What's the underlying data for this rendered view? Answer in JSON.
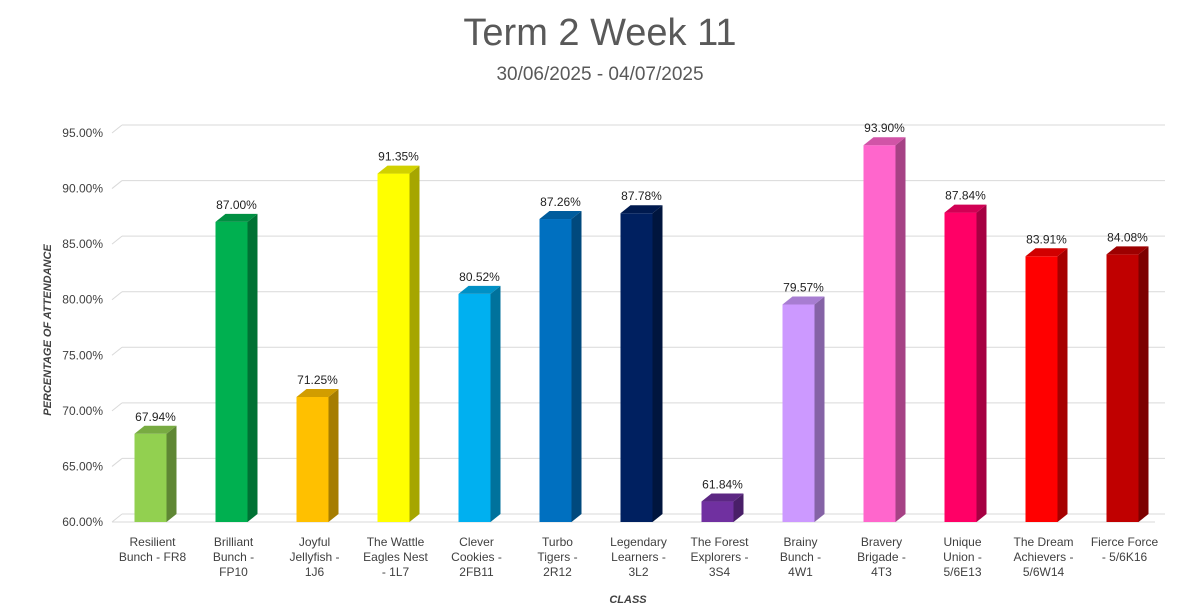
{
  "chart_data": {
    "type": "bar",
    "title": "Term 2 Week 11",
    "subtitle": "30/06/2025 - 04/07/2025",
    "xlabel": "CLASS",
    "ylabel": "PERCENTAGE OF ATTENDANCE",
    "ylim": [
      60,
      95
    ],
    "ytick_step": 5,
    "grid": true,
    "bar_style": "3d",
    "categories": [
      [
        "Resilient",
        "Bunch - FR8"
      ],
      [
        "Brilliant",
        "Bunch -",
        "FP10"
      ],
      [
        "Joyful",
        "Jellyfish -",
        "1J6"
      ],
      [
        "The Wattle",
        "Eagles Nest",
        "- 1L7"
      ],
      [
        "Clever",
        "Cookies -",
        "2FB11"
      ],
      [
        "Turbo",
        "Tigers -",
        "2R12"
      ],
      [
        "Legendary",
        "Learners -",
        "3L2"
      ],
      [
        "The Forest",
        "Explorers -",
        "3S4"
      ],
      [
        "Brainy",
        "Bunch -",
        "4W1"
      ],
      [
        "Bravery",
        "Brigade -",
        "4T3"
      ],
      [
        "Unique",
        "Union -",
        "5/6E13"
      ],
      [
        "The Dream",
        "Achievers -",
        "5/6W14"
      ],
      [
        "Fierce Force",
        "- 5/6K16"
      ]
    ],
    "values": [
      67.94,
      87.0,
      71.25,
      91.35,
      80.52,
      87.26,
      87.78,
      61.84,
      79.57,
      93.9,
      87.84,
      83.91,
      84.08
    ],
    "colors": [
      "#92d050",
      "#00b050",
      "#ffc000",
      "#ffff00",
      "#00b0f0",
      "#0070c0",
      "#002060",
      "#7030a0",
      "#cc99ff",
      "#ff66cc",
      "#ff0066",
      "#ff0000",
      "#c00000"
    ]
  }
}
